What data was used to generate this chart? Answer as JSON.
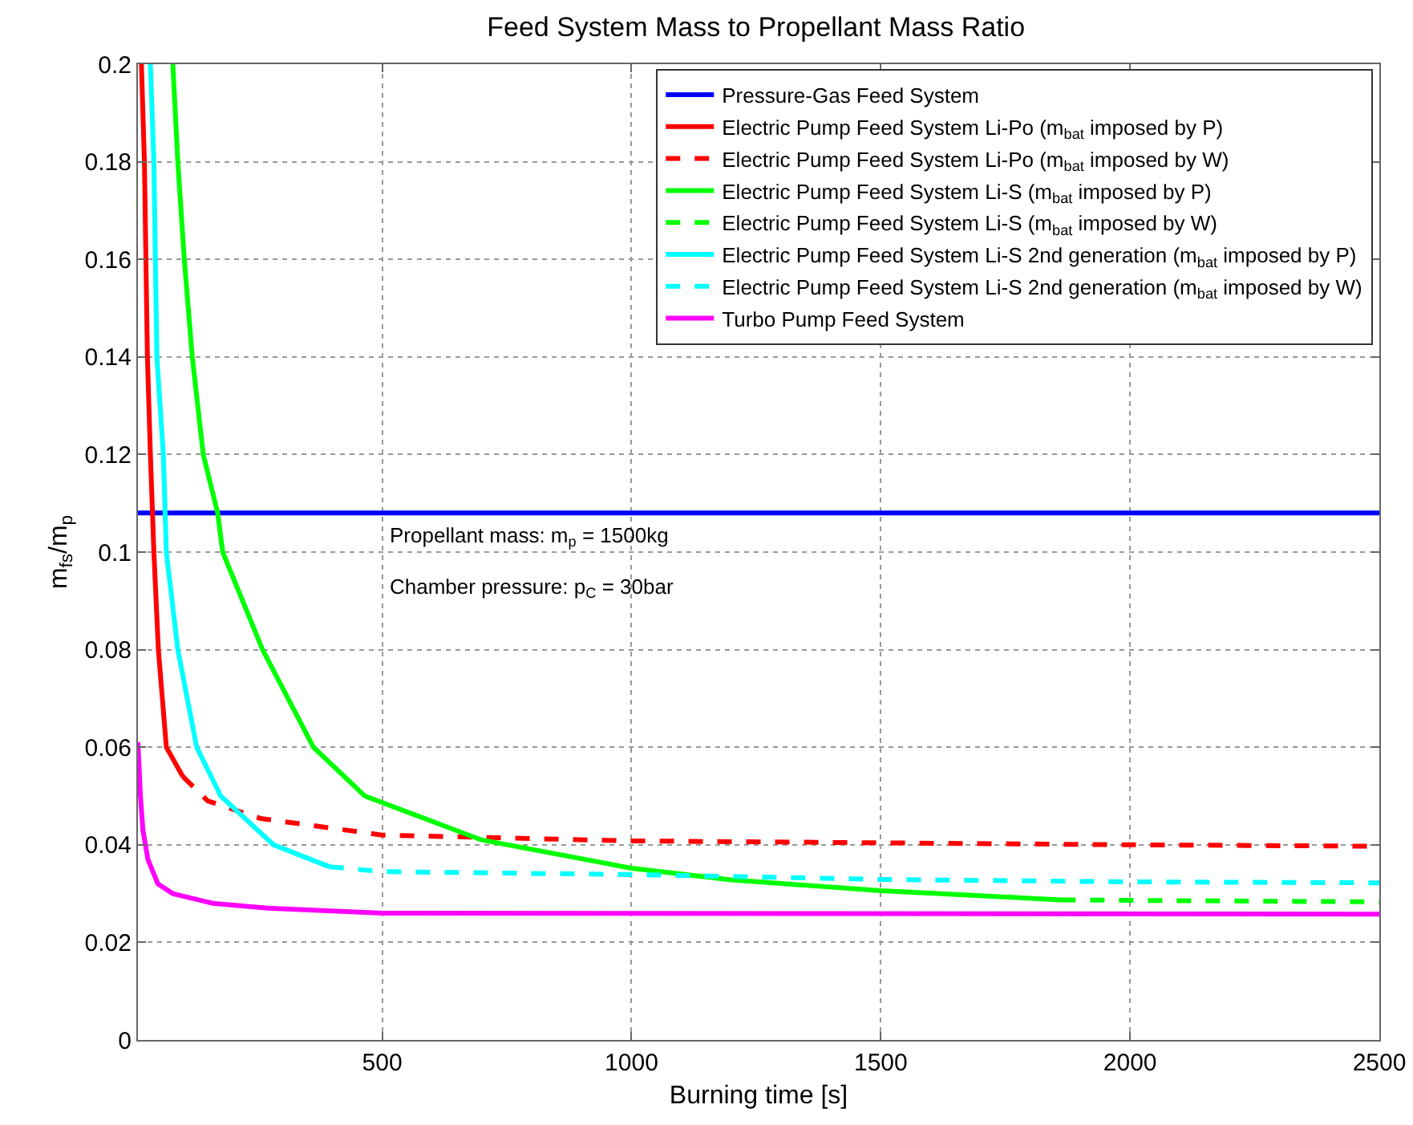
{
  "chart_data": {
    "type": "line",
    "title": "Feed System Mass to Propellant Mass Ratio",
    "xlabel": "Burning time [s]",
    "ylabel": "m$_{fs}$/m$_{p}$",
    "xlim": [
      10,
      2500
    ],
    "xticks": [
      500,
      1000,
      1500,
      2000,
      2500
    ],
    "ylim": [
      0,
      0.2
    ],
    "yticks": [
      0,
      0.02,
      0.04,
      0.06,
      0.08,
      0.1,
      0.12,
      0.14,
      0.16,
      0.18,
      0.2
    ],
    "grid": true,
    "legend": "top right",
    "annotations": [
      "Propellant mass: m$_{p}$ = 1500kg",
      "Chamber pressure: p$_{C}$ = 30bar"
    ],
    "series": [
      {
        "name": "Pressure-Gas Feed System",
        "color": "#0000ff",
        "line_style": "solid",
        "x": [
          10,
          2500
        ],
        "values": [
          0.108,
          0.108
        ]
      },
      {
        "name": "Electric Pump Feed System Li-Po (m$_{bat}$ imposed by P)",
        "color": "#ff0000",
        "line_style": "solid",
        "x": [
          17,
          23,
          26,
          29,
          35,
          42,
          51,
          67,
          100
        ],
        "values": [
          0.2,
          0.18,
          0.16,
          0.14,
          0.12,
          0.1,
          0.08,
          0.06,
          0.054
        ]
      },
      {
        "name": "Electric Pump Feed System Li-Po (m$_{bat}$ imposed by W)",
        "color": "#ff0000",
        "line_style": "dashed",
        "x": [
          100,
          150,
          256,
          500,
          1000,
          1500,
          2000,
          2500
        ],
        "values": [
          0.054,
          0.049,
          0.0454,
          0.042,
          0.0408,
          0.0404,
          0.04,
          0.0397
        ]
      },
      {
        "name": "Electric Pump Feed System Li-S (m$_{bat}$ imposed by P)",
        "color": "#00ff00",
        "line_style": "solid",
        "x": [
          80,
          90,
          103,
          119,
          141,
          170,
          180,
          260,
          362,
          465,
          699,
          1000,
          1200,
          1500,
          1862
        ],
        "values": [
          0.2,
          0.18,
          0.16,
          0.14,
          0.12,
          0.108,
          0.1,
          0.08,
          0.06,
          0.05,
          0.041,
          0.0352,
          0.0328,
          0.0306,
          0.0287
        ]
      },
      {
        "name": "Electric Pump Feed System Li-S (m$_{bat}$ imposed by W)",
        "color": "#00ff00",
        "line_style": "dashed",
        "x": [
          1862,
          2500
        ],
        "values": [
          0.0287,
          0.0283
        ]
      },
      {
        "name": "Electric Pump Feed System Li-S 2nd generation (m$_{bat}$ imposed by P)",
        "color": "#00ffff",
        "line_style": "solid",
        "x": [
          35,
          42,
          48,
          61,
          67,
          90,
          128,
          176,
          282,
          394
        ],
        "values": [
          0.2,
          0.18,
          0.14,
          0.12,
          0.1,
          0.08,
          0.06,
          0.05,
          0.04,
          0.0355
        ]
      },
      {
        "name": "Electric Pump Feed System Li-S 2nd generation (m$_{bat}$ imposed by W)",
        "color": "#00ffff",
        "line_style": "dashed",
        "x": [
          394,
          500,
          1000,
          1500,
          2000,
          2500
        ],
        "values": [
          0.0355,
          0.0345,
          0.0339,
          0.0329,
          0.0324,
          0.0322
        ]
      },
      {
        "name": "Turbo Pump Feed System",
        "color": "#ff00ff",
        "line_style": "solid",
        "x": [
          10,
          15,
          20,
          30,
          50,
          80,
          160,
          270,
          500,
          2500
        ],
        "values": [
          0.061,
          0.05,
          0.043,
          0.037,
          0.032,
          0.03,
          0.028,
          0.027,
          0.026,
          0.0258
        ]
      }
    ]
  }
}
